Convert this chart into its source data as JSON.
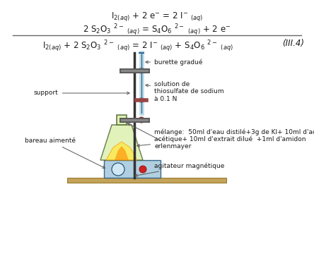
{
  "bg_color": "#ffffff",
  "text_color": "#1a1a1a",
  "arrow_color": "#555555",
  "eq1": "I$_{2(aq)}$ + 2 e$^{-}$ = 2 I$^{-}$ $_{(aq)}$",
  "eq2": "2 S$_{2}$O$_{3}$ $^{2-}$ $_{(aq)}$ = S$_{4}$O$_{6}$ $^{2-}$ $_{(aq)}$ + 2 e$^{-}$",
  "eq3": "I$_{2(aq)}$ + 2 S$_{2}$O$_{3}$ $^{2-}$ $_{(aq)}$ = 2 I$^{-}$ $_{(aq)}$ + S$_{4}$O$_{6}$ $^{2-}$ $_{(aq)}$",
  "eq_num": "(III.4)",
  "label_burette": "burette gradué",
  "label_solution": "solution de\nthiosulfate de sodium\nà 0.1 N",
  "label_support": "support",
  "label_bareau": "bareau aimenté",
  "label_melange": "mélange:  50ml d'eau distilé+3g de KI+ 10ml d'acide\nacétique+ 10ml d'extrait dilué  +1ml d'amidon",
  "label_erlenmeyer": "erlenmayer",
  "label_agitateur": "agitateur magnétique"
}
